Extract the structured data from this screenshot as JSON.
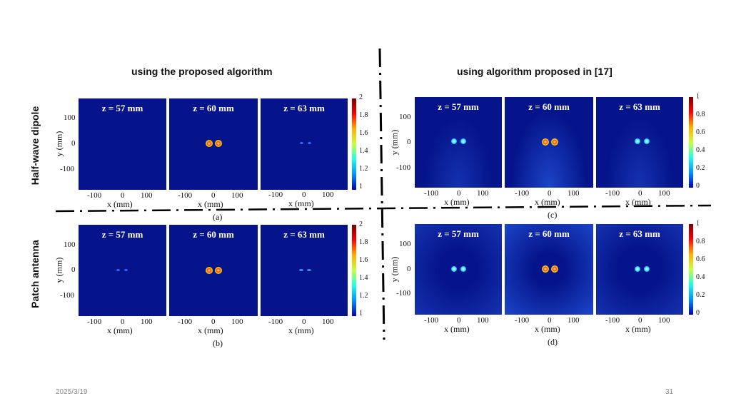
{
  "column_titles": {
    "left": "using the proposed algorithm",
    "right": "using algorithm proposed in [17]"
  },
  "row_labels": {
    "top": "Half-wave dipole",
    "bottom": "Patch antenna"
  },
  "panel_titles": {
    "z57": "z = 57 mm",
    "z60": "z = 60 mm",
    "z63": "z = 63 mm"
  },
  "axes": {
    "x_label": "x (mm)",
    "y_label": "y (mm)",
    "x_ticks": [
      "-100",
      "0",
      "100"
    ],
    "y_ticks": [
      "100",
      "0",
      "-100"
    ]
  },
  "colorbars": {
    "left_ticks": [
      "2",
      "1.8",
      "1.6",
      "1.4",
      "1.2",
      "1"
    ],
    "right_ticks": [
      "1",
      "0.8",
      "0.6",
      "0.4",
      "0.2",
      "0"
    ]
  },
  "captions": {
    "a": "(a)",
    "b": "(b)",
    "c": "(c)",
    "d": "(d)"
  },
  "footer": {
    "date": "2025/3/19",
    "page_number": "31"
  },
  "colors": {
    "field_background": "#05148a",
    "divider": "#000000"
  }
}
